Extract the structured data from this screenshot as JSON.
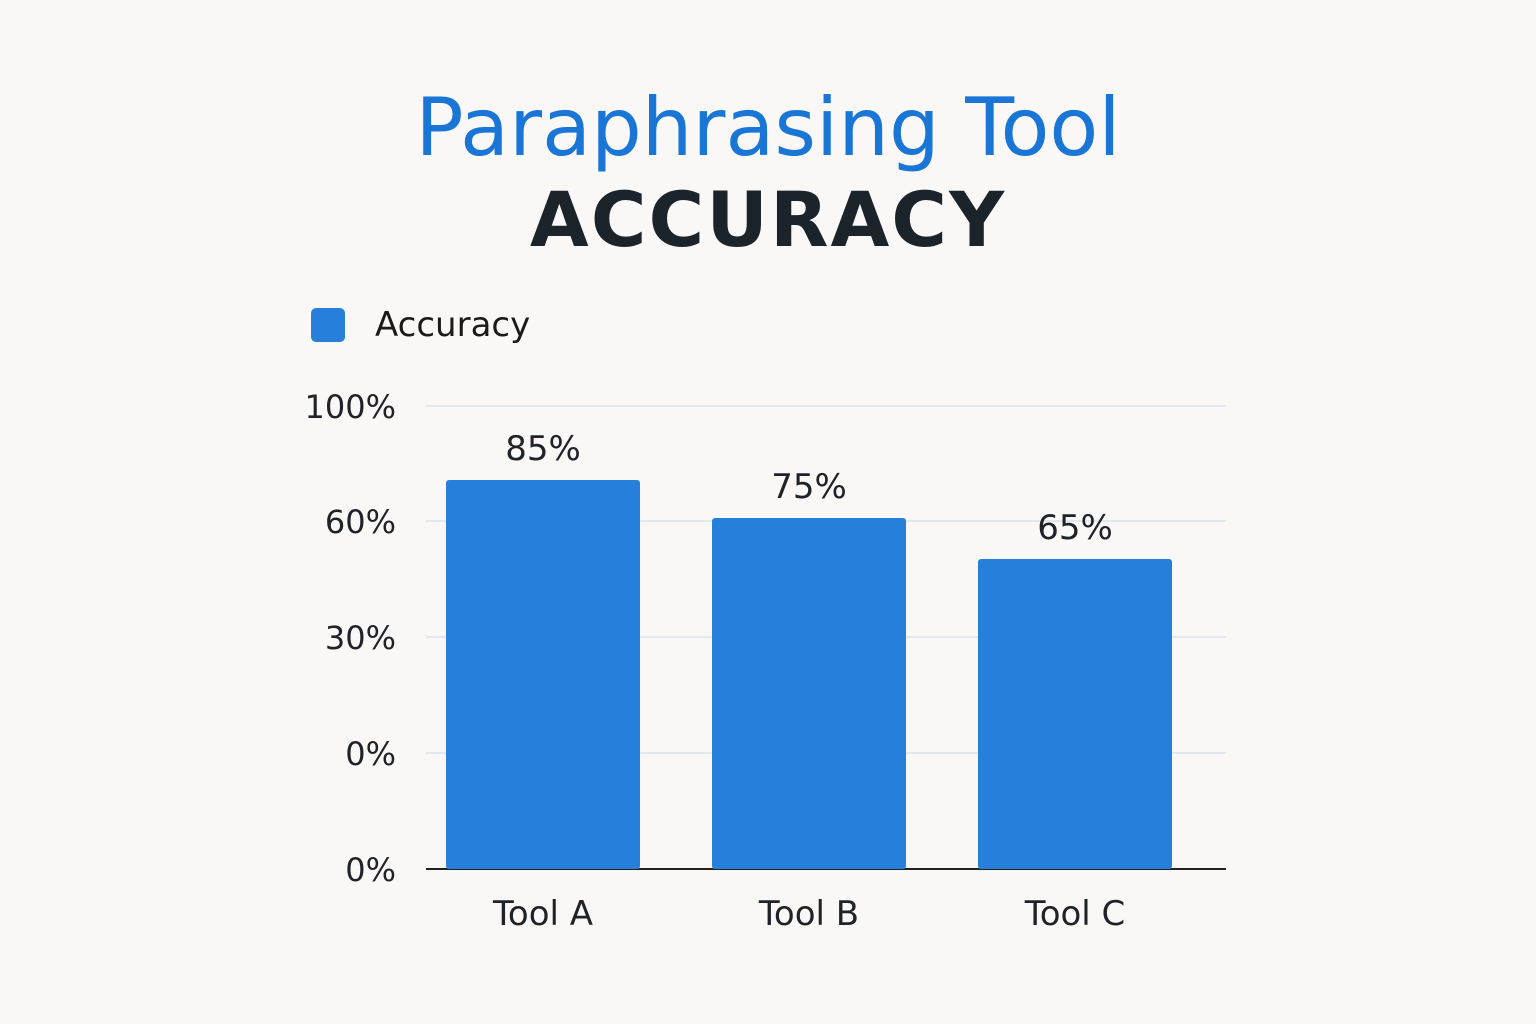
{
  "chart_data": {
    "type": "bar",
    "title": "Paraphrasing Tool",
    "subtitle": "ACCURACY",
    "categories": [
      "Tool A",
      "Tool B",
      "Tool C"
    ],
    "series": [
      {
        "name": "Accuracy",
        "values": [
          85,
          75,
          65
        ],
        "data_labels": [
          "85%",
          "75%",
          "65%"
        ]
      }
    ],
    "y_tick_labels": [
      "100%",
      "60%",
      "30%",
      "0%",
      "0%"
    ],
    "xlabel": "",
    "ylabel": "",
    "ylim": [
      0,
      100
    ],
    "grid": true,
    "legend_position": "top-left"
  },
  "colors": {
    "title": "#1976d6",
    "subtitle": "#1c242b",
    "bar": "#2680db",
    "grid": "#dde1ea",
    "baseline": "#222222"
  }
}
